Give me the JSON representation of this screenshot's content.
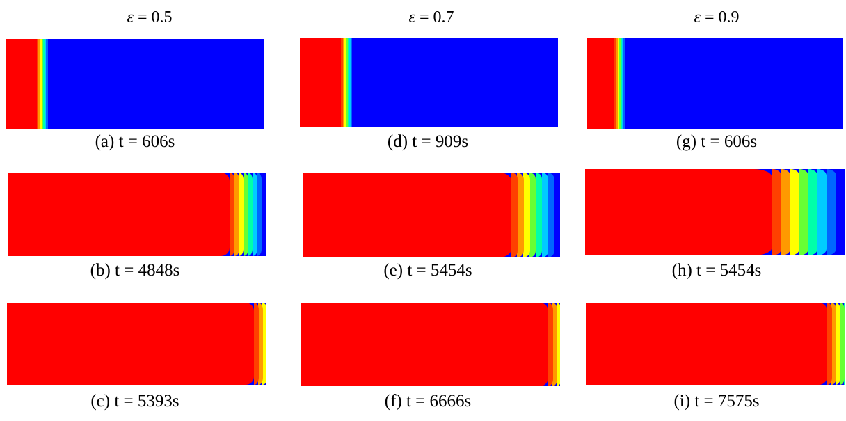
{
  "columns": [
    {
      "header": {
        "symbol": "ε",
        "equals": " = ",
        "value": "0.5"
      },
      "panels": [
        {
          "caption": "(a) t = 606s",
          "front_fraction": 0.12,
          "rounded": false
        },
        {
          "caption": "(b) t = 4848s",
          "front_fraction": 0.86,
          "rounded": true
        },
        {
          "caption": "(c) t = 5393s",
          "front_fraction": 0.955,
          "rounded": true
        }
      ]
    },
    {
      "header": {
        "symbol": "ε",
        "equals": " = ",
        "value": "0.7"
      },
      "panels": [
        {
          "caption": "(d) t = 909s",
          "front_fraction": 0.16,
          "rounded": false
        },
        {
          "caption": "(e) t = 5454s",
          "front_fraction": 0.81,
          "rounded": true
        },
        {
          "caption": "(f) t = 6666s",
          "front_fraction": 0.955,
          "rounded": true
        }
      ]
    },
    {
      "header": {
        "symbol": "ε",
        "equals": " = ",
        "value": "0.9"
      },
      "panels": [
        {
          "caption": "(g) t = 606s",
          "front_fraction": 0.105,
          "rounded": false
        },
        {
          "caption": "(h) t = 5454s",
          "front_fraction": 0.72,
          "rounded": true
        },
        {
          "caption": "(i) t = 7575s",
          "front_fraction": 0.93,
          "rounded": true
        }
      ]
    }
  ],
  "colors": {
    "melted": "#ff0000",
    "solid": "#0000ff",
    "mush": [
      "#ff4000",
      "#ff9900",
      "#ffff00",
      "#66ff33",
      "#00ffaa",
      "#00ccff",
      "#0066ff"
    ]
  }
}
